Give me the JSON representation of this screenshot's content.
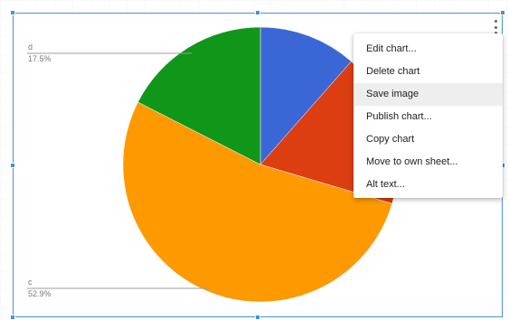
{
  "chart_menu": {
    "items": [
      {
        "label": "Edit chart..."
      },
      {
        "label": "Delete chart"
      },
      {
        "label": "Save image"
      },
      {
        "label": "Publish chart..."
      },
      {
        "label": "Copy chart"
      },
      {
        "label": "Move to own sheet..."
      },
      {
        "label": "Alt text..."
      }
    ],
    "hovered": "Save image"
  },
  "colors": {
    "selection_border": "#4a90d9",
    "menu_hover": "#eeeeee"
  },
  "chart_data": {
    "type": "pie",
    "start_angle_deg": 0,
    "direction": "clockwise",
    "slices": [
      {
        "label": "",
        "value": 11.5,
        "color": "#3b66d6"
      },
      {
        "label": "",
        "value": 18.1,
        "color": "#dc3e12"
      },
      {
        "label": "c",
        "value": 52.9,
        "display": "52.9%",
        "color": "#ff9900"
      },
      {
        "label": "d",
        "value": 17.5,
        "display": "17.5%",
        "color": "#109618"
      }
    ]
  }
}
